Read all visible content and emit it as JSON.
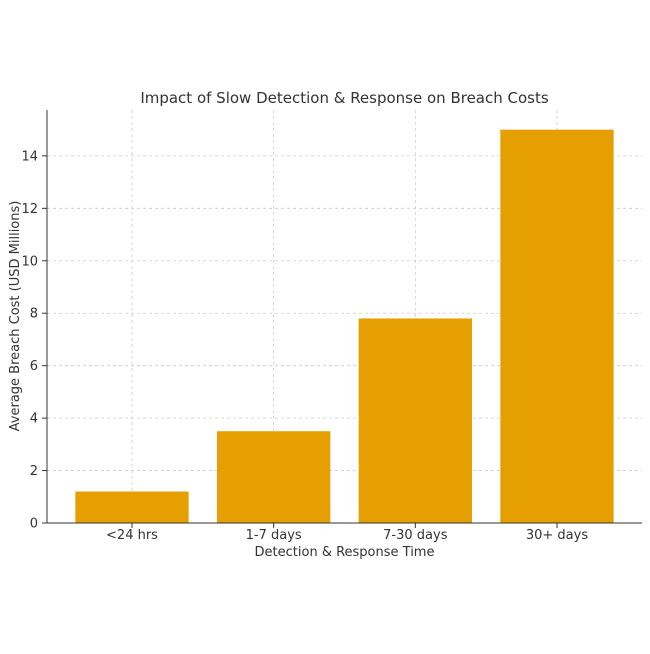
{
  "chart_data": {
    "type": "bar",
    "title": "Impact of Slow Detection & Response on Breach Costs",
    "xlabel": "Detection & Response Time",
    "ylabel": "Average Breach Cost (USD Millions)",
    "categories": [
      "<24 hrs",
      "1-7 days",
      "7-30 days",
      "30+ days"
    ],
    "values": [
      1.2,
      3.5,
      7.8,
      15.0
    ],
    "ylim": [
      0,
      15.75
    ],
    "yticks": [
      0,
      2,
      4,
      6,
      8,
      10,
      12,
      14
    ],
    "grid": true,
    "bar_color": "#E69F00"
  }
}
